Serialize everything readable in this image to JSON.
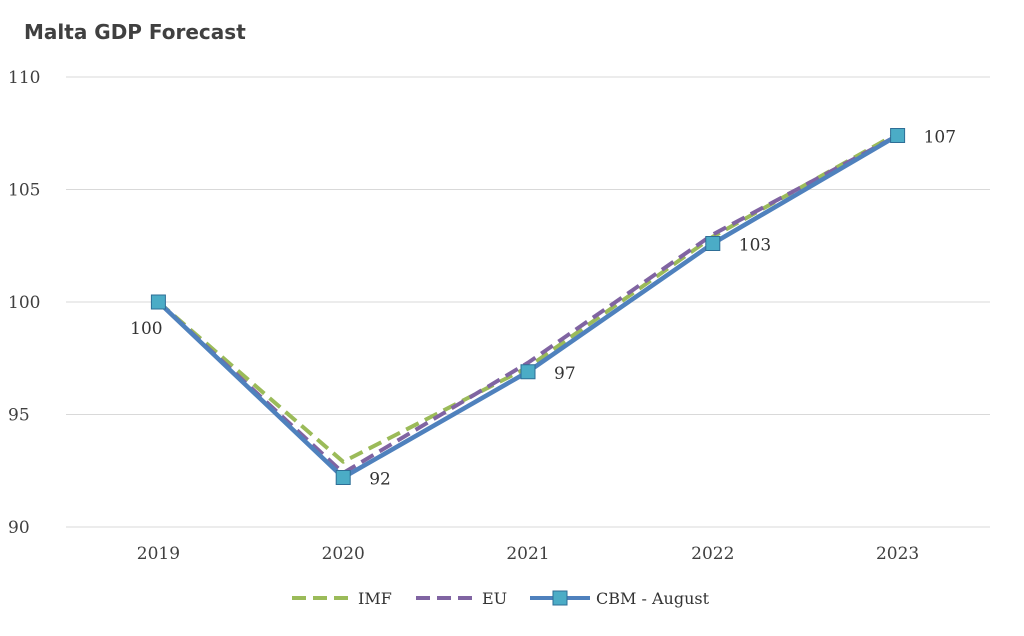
{
  "chart_data": {
    "type": "line",
    "title": "Malta GDP Forecast",
    "xlabel": "",
    "ylabel": "",
    "categories": [
      "2019",
      "2020",
      "2021",
      "2022",
      "2023"
    ],
    "ylim": [
      90,
      110
    ],
    "yticks": [
      90,
      95,
      100,
      105,
      110
    ],
    "grid": true,
    "legend_position": "bottom",
    "series": [
      {
        "name": "IMF",
        "values": [
          100,
          92.9,
          97.1,
          102.9,
          107.5
        ],
        "color": "#9bbb59",
        "style": "dashed",
        "marker": "none"
      },
      {
        "name": "EU",
        "values": [
          100,
          92.4,
          97.3,
          103.0,
          107.4
        ],
        "color": "#8064a2",
        "style": "dashed",
        "marker": "none"
      },
      {
        "name": "CBM - August",
        "values": [
          100,
          92.2,
          96.9,
          102.6,
          107.4
        ],
        "color": "#4f81bd",
        "style": "solid",
        "marker": "square",
        "marker_color": "#4bacc6"
      }
    ],
    "data_labels": {
      "series": "CBM - August",
      "labels": [
        "100",
        "92",
        "97",
        "103",
        "107"
      ]
    }
  }
}
